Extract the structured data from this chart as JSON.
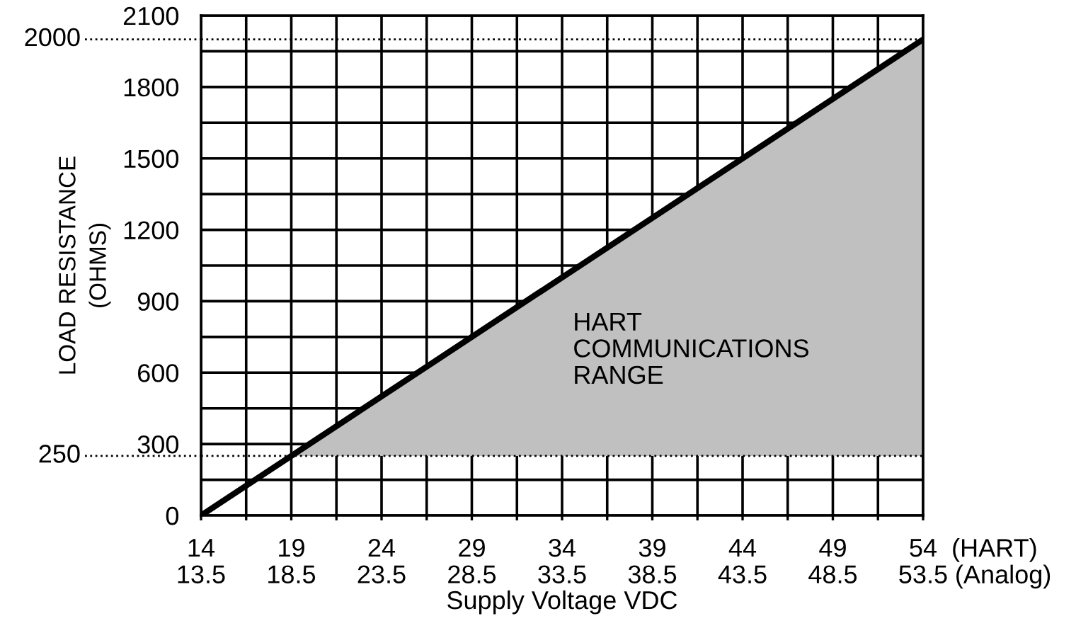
{
  "chart_data": {
    "type": "line",
    "xlabel": "Supply Voltage VDC",
    "ylabel": "LOAD RESISTANCE\n(OHMS)",
    "annotations": [
      "HART\nCOMMUNICATIONS\nRANGE",
      "(HART)",
      "(Analog)"
    ],
    "series": [
      {
        "type": "area",
        "color": "#c0c0c0",
        "x": [
          19,
          54,
          54
        ],
        "values": [
          250,
          2000,
          250
        ]
      },
      {
        "color": "#000000",
        "x": [
          14,
          54
        ],
        "values": [
          0,
          2000
        ]
      }
    ],
    "xlim": [
      14,
      54
    ],
    "xticks": [
      14,
      {
        "value": 16.5,
        "label": null
      },
      19,
      {
        "value": 21.5,
        "label": null
      },
      24,
      {
        "value": 26.5,
        "label": null
      },
      29,
      {
        "value": 31.5,
        "label": null
      },
      34,
      {
        "value": 36.5,
        "label": null
      },
      39,
      {
        "value": 41.5,
        "label": null
      },
      44,
      {
        "value": 46.5,
        "label": null
      },
      49,
      {
        "value": 51.5,
        "label": null
      },
      54
    ],
    "x2lim": [
      13.5,
      53.5
    ],
    "x2ticks": [
      13.5,
      18.5,
      23.5,
      28.5,
      33.5,
      38.5,
      43.5,
      48.5,
      53.5
    ],
    "ylim": [
      0,
      2100
    ],
    "yticks": [
      0,
      {
        "value": 150,
        "label": null
      },
      300,
      {
        "value": 450,
        "label": null
      },
      600,
      {
        "value": 750,
        "label": null
      },
      900,
      {
        "value": 1050,
        "label": null
      },
      1200,
      {
        "value": 1350,
        "label": null
      },
      1500,
      {
        "value": 1650,
        "label": null
      },
      1800,
      {
        "value": 1950,
        "label": null
      },
      2100
    ],
    "ref_lines": [
      {
        "axis": "y",
        "value": 2000,
        "label": "2000",
        "line_style": "dotted",
        "color": "#000000"
      },
      {
        "axis": "y",
        "value": 250,
        "label": "250",
        "line_style": "dotted",
        "color": "#000000"
      }
    ],
    "grid": true,
    "line_style": "solid"
  }
}
